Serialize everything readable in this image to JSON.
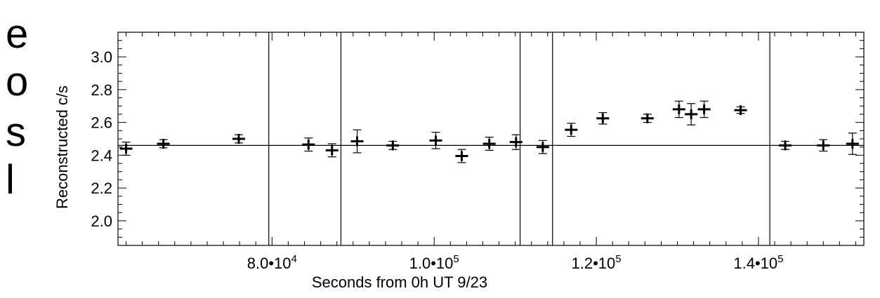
{
  "margin_text": [
    "e",
    "o",
    "s",
    "l"
  ],
  "chart_data": {
    "type": "scatter",
    "title": "",
    "xlabel": "Seconds from 0h UT 9/23",
    "ylabel": "Reconstructed c/s",
    "xlim": [
      61000,
      153000
    ],
    "ylim": [
      1.85,
      3.15
    ],
    "x_ticks": [
      {
        "value": 80000,
        "mantissa": "8.0•10",
        "exp": "4"
      },
      {
        "value": 100000,
        "mantissa": "1.0•10",
        "exp": "5"
      },
      {
        "value": 120000,
        "mantissa": "1.2•10",
        "exp": "5"
      },
      {
        "value": 140000,
        "mantissa": "1.4•10",
        "exp": "5"
      }
    ],
    "y_ticks": [
      {
        "value": 2.0,
        "label": "2.0"
      },
      {
        "value": 2.2,
        "label": "2.2"
      },
      {
        "value": 2.4,
        "label": "2.4"
      },
      {
        "value": 2.6,
        "label": "2.6"
      },
      {
        "value": 2.8,
        "label": "2.8"
      },
      {
        "value": 3.0,
        "label": "3.0"
      }
    ],
    "reference_line_y": 2.46,
    "vertical_lines_x": [
      79600,
      88500,
      110600,
      114600,
      141400
    ],
    "points": [
      {
        "x": 62000,
        "y": 2.44,
        "yerr": 0.04
      },
      {
        "x": 66600,
        "y": 2.47,
        "yerr": 0.025
      },
      {
        "x": 75900,
        "y": 2.5,
        "yerr": 0.025
      },
      {
        "x": 84500,
        "y": 2.465,
        "yerr": 0.04
      },
      {
        "x": 87400,
        "y": 2.43,
        "yerr": 0.04
      },
      {
        "x": 90500,
        "y": 2.485,
        "yerr": 0.07
      },
      {
        "x": 94900,
        "y": 2.46,
        "yerr": 0.025
      },
      {
        "x": 100200,
        "y": 2.49,
        "yerr": 0.05
      },
      {
        "x": 103400,
        "y": 2.395,
        "yerr": 0.04
      },
      {
        "x": 106800,
        "y": 2.47,
        "yerr": 0.04
      },
      {
        "x": 110100,
        "y": 2.48,
        "yerr": 0.045
      },
      {
        "x": 113400,
        "y": 2.45,
        "yerr": 0.04
      },
      {
        "x": 116900,
        "y": 2.555,
        "yerr": 0.04
      },
      {
        "x": 120800,
        "y": 2.625,
        "yerr": 0.035
      },
      {
        "x": 126300,
        "y": 2.625,
        "yerr": 0.025
      },
      {
        "x": 130200,
        "y": 2.68,
        "yerr": 0.05
      },
      {
        "x": 131700,
        "y": 2.65,
        "yerr": 0.065
      },
      {
        "x": 133300,
        "y": 2.68,
        "yerr": 0.05
      },
      {
        "x": 137800,
        "y": 2.675,
        "yerr": 0.02
      },
      {
        "x": 143300,
        "y": 2.46,
        "yerr": 0.025
      },
      {
        "x": 148000,
        "y": 2.46,
        "yerr": 0.035
      },
      {
        "x": 151600,
        "y": 2.47,
        "yerr": 0.065
      }
    ]
  }
}
